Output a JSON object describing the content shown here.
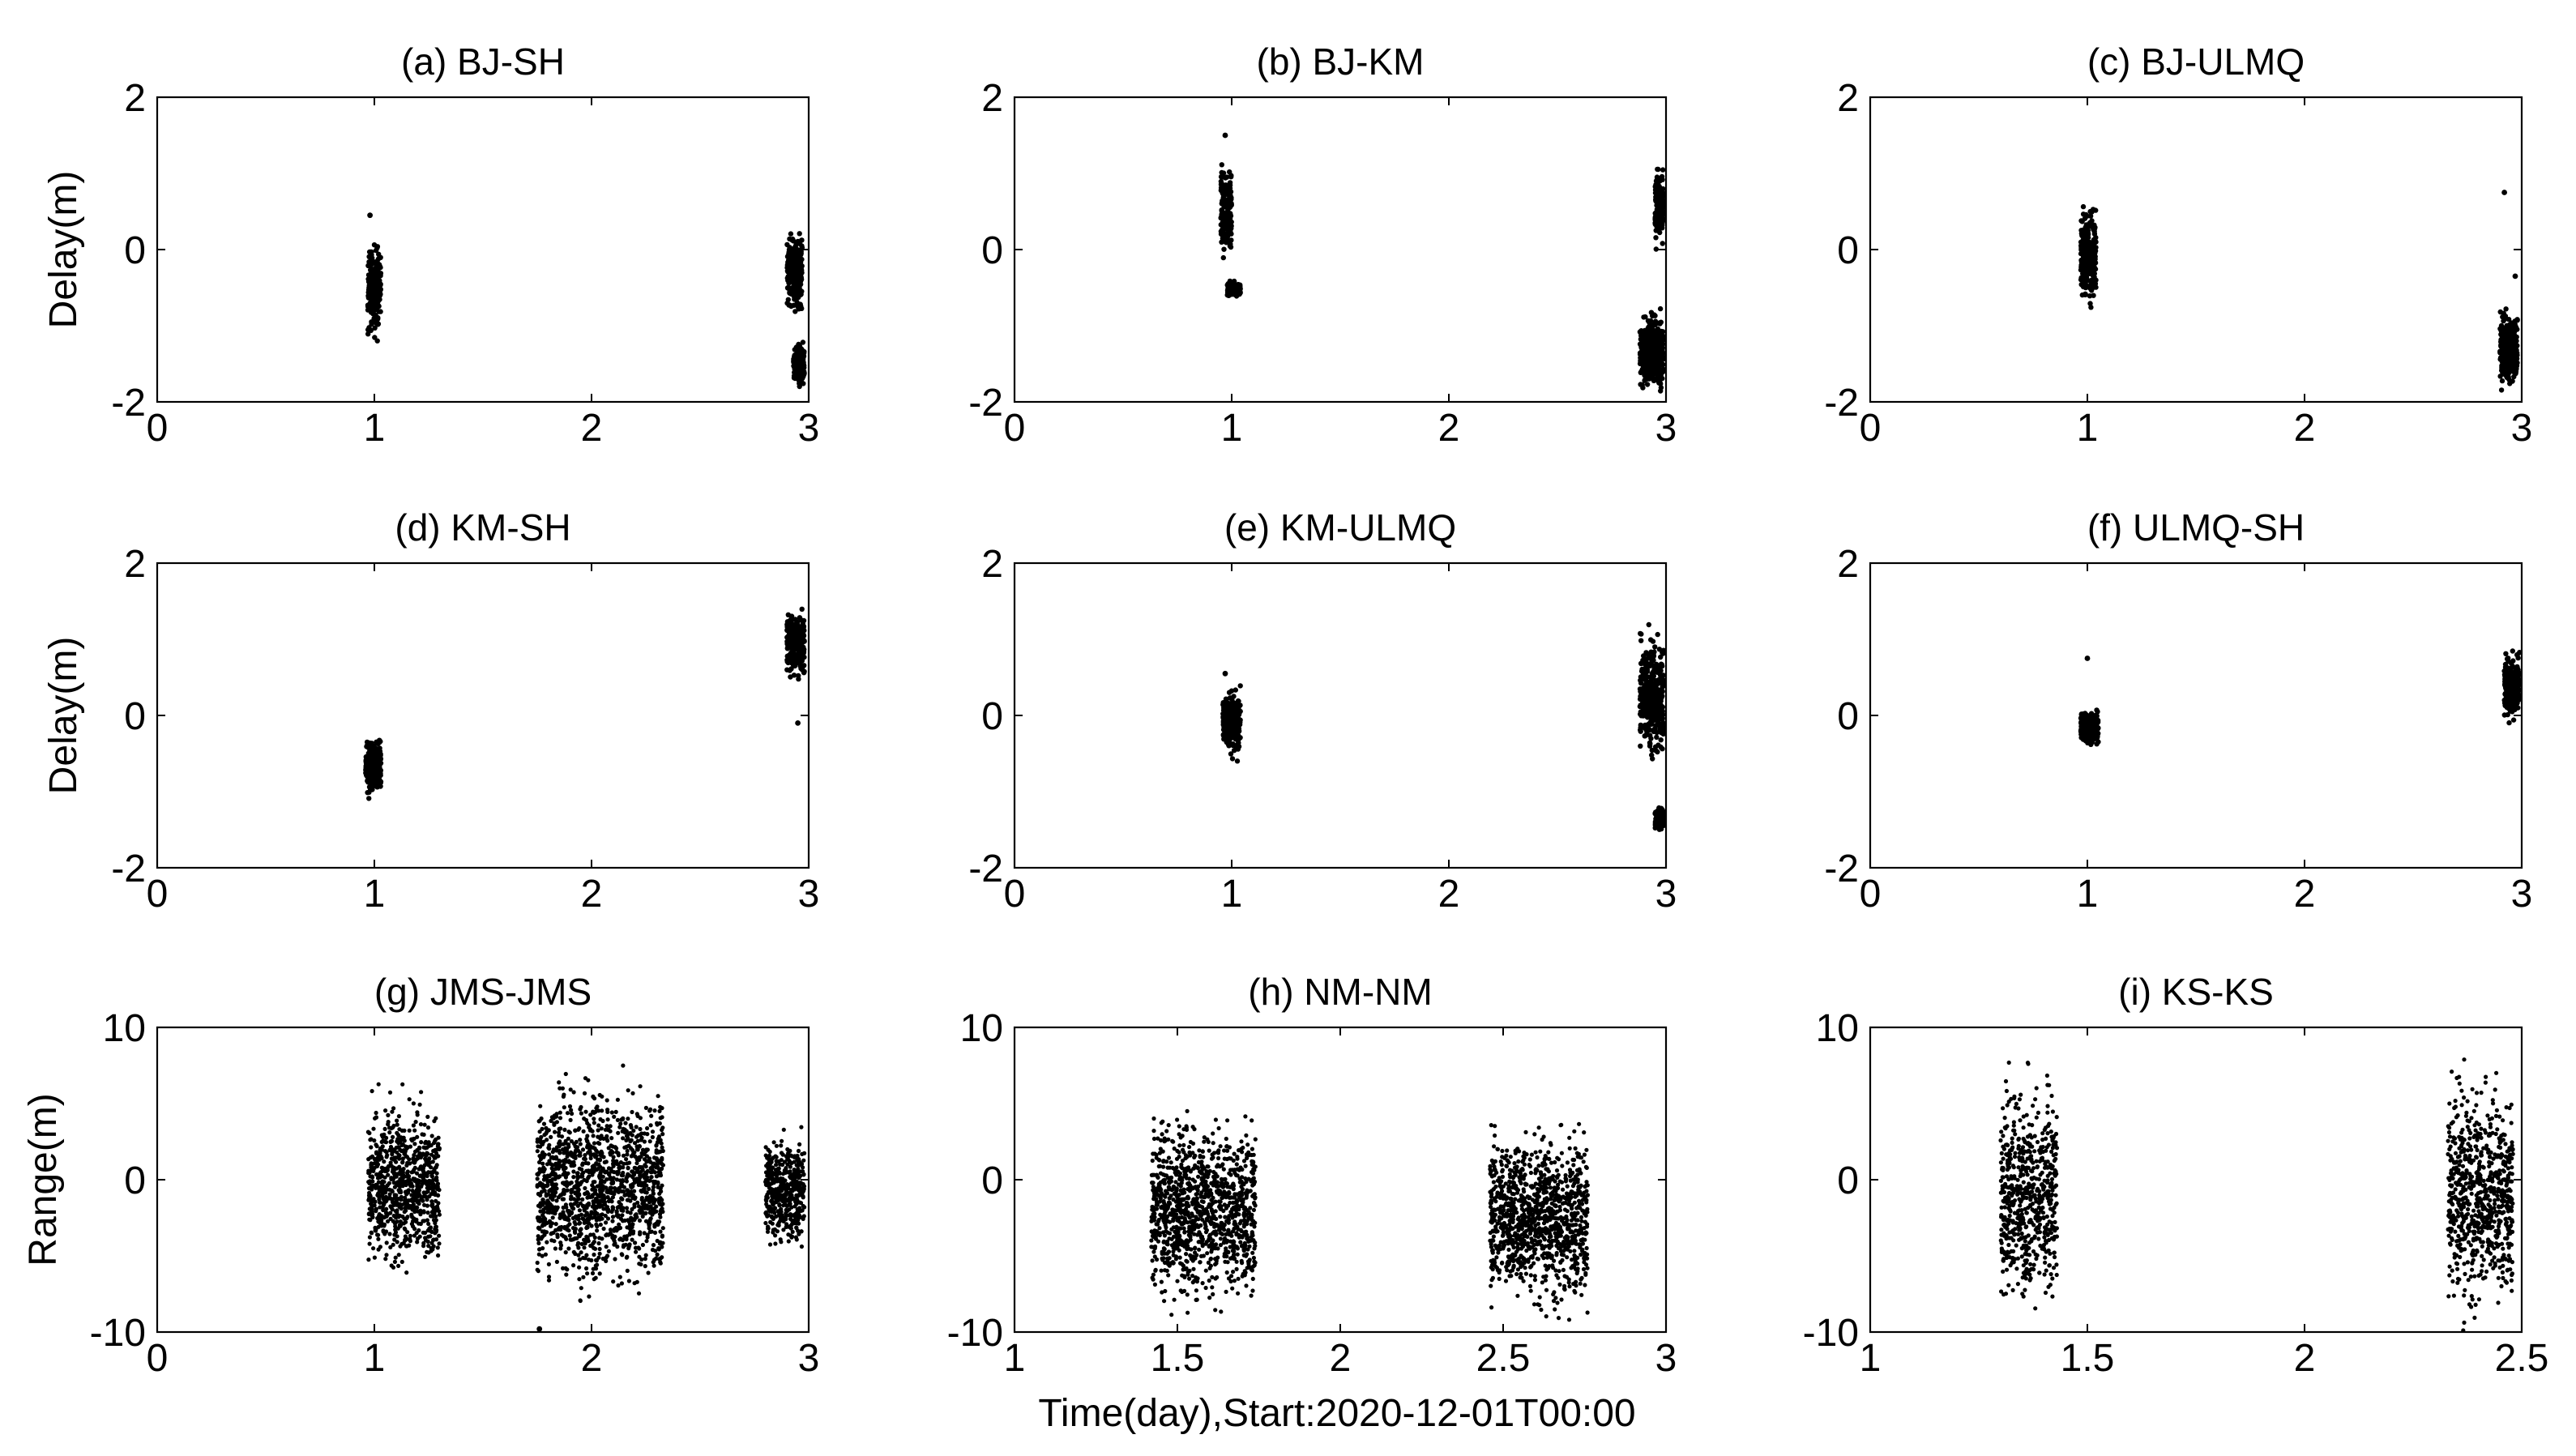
{
  "figure": {
    "x_caption": "Time(day),Start:2020-12-01T00:00"
  },
  "chart_data": [
    {
      "type": "scatter",
      "id": "a",
      "title": "(a) BJ-SH",
      "ylabel": "Delay(m)",
      "xlim": [
        0,
        3
      ],
      "ylim": [
        -2,
        2
      ],
      "xticks": [
        0,
        1,
        2,
        3
      ],
      "yticks": [
        -2,
        0,
        2
      ],
      "xtick_labels": [
        "0",
        "1",
        "2",
        "3"
      ],
      "ytick_labels": [
        "-2",
        "0",
        "2"
      ],
      "clusters": [
        {
          "x": [
            0.97,
            1.03
          ],
          "y": [
            -1.2,
            0.2
          ],
          "outliers": [
            [
              0.98,
              0.45
            ]
          ]
        },
        {
          "x": [
            2.9,
            2.97
          ],
          "y": [
            -0.9,
            0.35
          ]
        },
        {
          "x": [
            2.93,
            2.98
          ],
          "y": [
            -1.85,
            -1.2
          ]
        }
      ]
    },
    {
      "type": "scatter",
      "id": "b",
      "title": "(b) BJ-KM",
      "ylabel": "",
      "xlim": [
        0,
        3
      ],
      "ylim": [
        -2,
        2
      ],
      "xticks": [
        0,
        1,
        2,
        3
      ],
      "yticks": [
        -2,
        0,
        2
      ],
      "xtick_labels": [
        "0",
        "1",
        "2",
        "3"
      ],
      "ytick_labels": [
        "-2",
        "0",
        "2"
      ],
      "clusters": [
        {
          "x": [
            0.95,
            1.0
          ],
          "y": [
            -0.3,
            1.2
          ],
          "outliers": [
            [
              0.97,
              1.5
            ]
          ]
        },
        {
          "x": [
            0.98,
            1.04
          ],
          "y": [
            -0.65,
            -0.4
          ]
        },
        {
          "x": [
            2.88,
            2.99
          ],
          "y": [
            -2.0,
            -0.7
          ]
        },
        {
          "x": [
            2.95,
            2.99
          ],
          "y": [
            0.0,
            1.2
          ]
        }
      ]
    },
    {
      "type": "scatter",
      "id": "c",
      "title": "(c) BJ-ULMQ",
      "ylabel": "",
      "xlim": [
        0,
        3
      ],
      "ylim": [
        -2,
        2
      ],
      "xticks": [
        0,
        1,
        2,
        3
      ],
      "yticks": [
        -2,
        0,
        2
      ],
      "xtick_labels": [
        "0",
        "1",
        "2",
        "3"
      ],
      "ytick_labels": [
        "-2",
        "0",
        "2"
      ],
      "clusters": [
        {
          "x": [
            0.97,
            1.04
          ],
          "y": [
            -0.8,
            0.65
          ]
        },
        {
          "x": [
            2.9,
            2.98
          ],
          "y": [
            -1.9,
            -0.7
          ],
          "outliers": [
            [
              2.92,
              0.75
            ],
            [
              2.97,
              -0.35
            ]
          ]
        }
      ]
    },
    {
      "type": "scatter",
      "id": "d",
      "title": "(d) KM-SH",
      "ylabel": "Delay(m)",
      "xlim": [
        0,
        3
      ],
      "ylim": [
        -2,
        2
      ],
      "xticks": [
        0,
        1,
        2,
        3
      ],
      "yticks": [
        -2,
        0,
        2
      ],
      "xtick_labels": [
        "0",
        "1",
        "2",
        "3"
      ],
      "ytick_labels": [
        "-2",
        "0",
        "2"
      ],
      "clusters": [
        {
          "x": [
            0.96,
            1.03
          ],
          "y": [
            -1.1,
            -0.25
          ]
        },
        {
          "x": [
            2.9,
            2.98
          ],
          "y": [
            0.4,
            1.5
          ],
          "outliers": [
            [
              2.95,
              -0.1
            ]
          ]
        }
      ]
    },
    {
      "type": "scatter",
      "id": "e",
      "title": "(e) KM-ULMQ",
      "ylabel": "",
      "xlim": [
        0,
        3
      ],
      "ylim": [
        -2,
        2
      ],
      "xticks": [
        0,
        1,
        2,
        3
      ],
      "yticks": [
        -2,
        0,
        2
      ],
      "xtick_labels": [
        "0",
        "1",
        "2",
        "3"
      ],
      "ytick_labels": [
        "-2",
        "0",
        "2"
      ],
      "clusters": [
        {
          "x": [
            0.96,
            1.04
          ],
          "y": [
            -0.6,
            0.4
          ],
          "outliers": [
            [
              0.97,
              0.55
            ]
          ]
        },
        {
          "x": [
            2.88,
            2.99
          ],
          "y": [
            -0.7,
            1.2
          ]
        },
        {
          "x": [
            2.95,
            2.99
          ],
          "y": [
            -1.5,
            -1.2
          ]
        }
      ]
    },
    {
      "type": "scatter",
      "id": "f",
      "title": "(f) ULMQ-SH",
      "ylabel": "",
      "xlim": [
        0,
        3
      ],
      "ylim": [
        -2,
        2
      ],
      "xticks": [
        0,
        1,
        2,
        3
      ],
      "yticks": [
        -2,
        0,
        2
      ],
      "xtick_labels": [
        "0",
        "1",
        "2",
        "3"
      ],
      "ytick_labels": [
        "-2",
        "0",
        "2"
      ],
      "clusters": [
        {
          "x": [
            0.97,
            1.05
          ],
          "y": [
            -0.4,
            0.1
          ],
          "outliers": [
            [
              1.0,
              0.75
            ]
          ]
        },
        {
          "x": [
            2.92,
            2.99
          ],
          "y": [
            -0.15,
            0.9
          ]
        }
      ]
    },
    {
      "type": "scatter",
      "id": "g",
      "title": "(g) JMS-JMS",
      "ylabel": "Range(m)",
      "xlim": [
        0,
        3
      ],
      "ylim": [
        -10,
        10
      ],
      "xticks": [
        0,
        1,
        2,
        3
      ],
      "yticks": [
        -10,
        0,
        10
      ],
      "xtick_labels": [
        "0",
        "1",
        "2",
        "3"
      ],
      "ytick_labels": [
        "-10",
        "0",
        "10"
      ],
      "clusters": [
        {
          "x": [
            0.97,
            1.3
          ],
          "y": [
            -7,
            6.5
          ]
        },
        {
          "x": [
            1.75,
            2.33
          ],
          "y": [
            -8.5,
            7.5
          ],
          "outliers": [
            [
              1.76,
              -9.8
            ]
          ]
        },
        {
          "x": [
            2.8,
            2.98
          ],
          "y": [
            -5,
            3.5
          ]
        }
      ]
    },
    {
      "type": "scatter",
      "id": "h",
      "title": "(h) NM-NM",
      "ylabel": "",
      "xlim": [
        1,
        3
      ],
      "ylim": [
        -10,
        10
      ],
      "xticks": [
        1,
        1.5,
        2,
        2.5,
        3
      ],
      "yticks": [
        -10,
        0,
        10
      ],
      "xtick_labels": [
        "1",
        "1.5",
        "2",
        "2.5",
        "3"
      ],
      "ytick_labels": [
        "-10",
        "0",
        "10"
      ],
      "clusters": [
        {
          "x": [
            1.42,
            1.74
          ],
          "y": [
            -9.5,
            5.5
          ]
        },
        {
          "x": [
            2.46,
            2.76
          ],
          "y": [
            -9.5,
            4.5
          ]
        }
      ]
    },
    {
      "type": "scatter",
      "id": "i",
      "title": "(i) KS-KS",
      "ylabel": "",
      "xlim": [
        1,
        2.5
      ],
      "ylim": [
        -10,
        10
      ],
      "xticks": [
        1,
        1.5,
        2,
        2.5
      ],
      "yticks": [
        -10,
        0,
        10
      ],
      "xtick_labels": [
        "1",
        "1.5",
        "2",
        "2.5"
      ],
      "ytick_labels": [
        "-10",
        "0",
        "10"
      ],
      "clusters": [
        {
          "x": [
            1.3,
            1.43
          ],
          "y": [
            -10,
            8
          ]
        },
        {
          "x": [
            2.33,
            2.48
          ],
          "y": [
            -10,
            8
          ]
        }
      ]
    }
  ]
}
